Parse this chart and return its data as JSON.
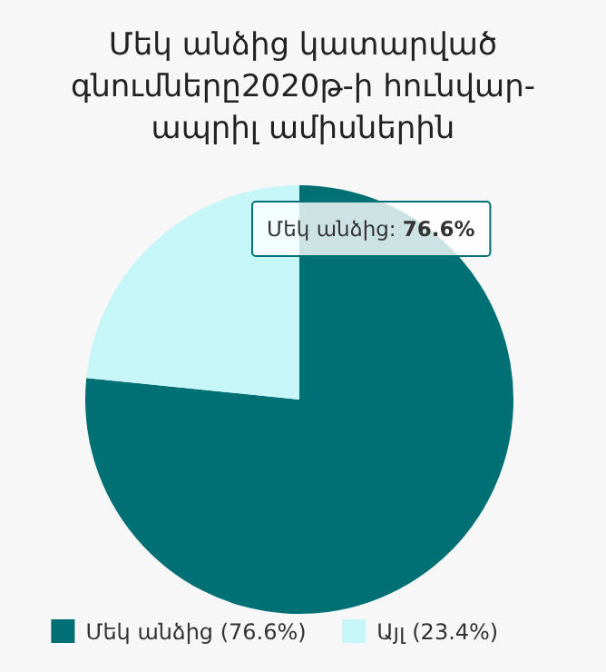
{
  "chart_data": {
    "type": "pie",
    "title": "Մեկ անձից կատարված գնումները2020թ-ի հունվար-ապրիլ ամիսներին",
    "categories": [
      "Մեկ անձից (76.6%)",
      "Այլ (23.4%)"
    ],
    "values": [
      76.6,
      23.4
    ],
    "colors": [
      "#007074",
      "#c6f6f8"
    ],
    "legend": "bottom",
    "annotations": [
      "Մեկ անձից: 76.6%"
    ]
  }
}
